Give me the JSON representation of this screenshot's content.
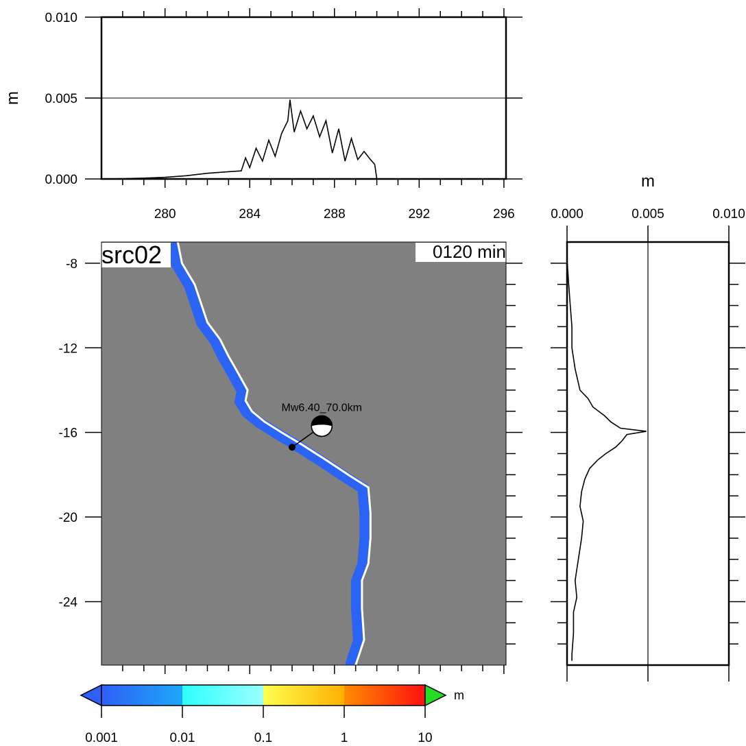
{
  "chart_data": [
    {
      "type": "line",
      "panel": "top-profile",
      "ylabel": "m",
      "ylim": [
        0,
        0.01
      ],
      "xlim": [
        277,
        296.1
      ],
      "yticks": [
        "0.000",
        "0.005",
        "0.010"
      ],
      "xticks": [
        "280",
        "284",
        "288",
        "292",
        "296"
      ],
      "grid": "horizontal line at 0.005",
      "x": [
        277,
        278,
        279,
        280,
        281,
        282,
        283,
        283.6,
        283.8,
        284.0,
        284.3,
        284.6,
        284.9,
        285.2,
        285.5,
        285.8,
        285.9,
        286.1,
        286.4,
        286.7,
        287.0,
        287.3,
        287.6,
        287.9,
        288.2,
        288.5,
        288.8,
        289.1,
        289.4,
        289.7,
        289.9,
        290.0
      ],
      "values": [
        0.0,
        2e-05,
        5e-05,
        0.0001,
        0.0002,
        0.00035,
        0.00045,
        0.0005,
        0.0013,
        0.0007,
        0.0019,
        0.0011,
        0.0024,
        0.0014,
        0.0028,
        0.0036,
        0.0049,
        0.0029,
        0.0042,
        0.0031,
        0.0039,
        0.0026,
        0.0036,
        0.0016,
        0.0031,
        0.0011,
        0.0025,
        0.0012,
        0.0017,
        0.0012,
        0.0009,
        0.0
      ]
    },
    {
      "type": "line",
      "panel": "right-profile",
      "xlabel": "m",
      "xlim": [
        0,
        0.01
      ],
      "ylim": [
        -27,
        -7
      ],
      "xticks": [
        "0.000",
        "0.005",
        "0.010"
      ],
      "grid": "vertical line at 0.005",
      "y": [
        -7.8,
        -9.0,
        -10.0,
        -11.0,
        -12.0,
        -13.0,
        -14.0,
        -14.4,
        -14.8,
        -15.2,
        -15.5,
        -15.8,
        -15.95,
        -16.1,
        -16.4,
        -16.7,
        -17.0,
        -17.3,
        -17.7,
        -18.2,
        -18.8,
        -19.5,
        -20.2,
        -21.0,
        -22.0,
        -23.0,
        -23.8,
        -24.5,
        -25.5,
        -26.5,
        -26.8
      ],
      "values": [
        0.0,
        0.0001,
        0.0002,
        0.0003,
        0.0003,
        0.0005,
        0.0008,
        0.0013,
        0.0016,
        0.0023,
        0.0027,
        0.0033,
        0.0049,
        0.0037,
        0.0034,
        0.003,
        0.0024,
        0.0019,
        0.0014,
        0.0011,
        0.0009,
        0.0008,
        0.001,
        0.0009,
        0.0007,
        0.0005,
        0.0006,
        0.0004,
        0.0004,
        0.0003,
        0.0003
      ]
    },
    {
      "type": "heatmap",
      "panel": "main-map",
      "title": "src02",
      "time_label": "0120 min",
      "xlim": [
        277,
        296.1
      ],
      "ylim": [
        -27,
        -7
      ],
      "xticks": [
        "280",
        "284",
        "288",
        "292",
        "296"
      ],
      "yticks": [
        "-8",
        "-12",
        "-16",
        "-20",
        "-24"
      ],
      "background_color": "#808080",
      "wave_color": "#2b64f5",
      "coast_color": "#ffffff",
      "coastline": [
        [
          280.6,
          -7.0
        ],
        [
          280.8,
          -8.0
        ],
        [
          281.4,
          -9.0
        ],
        [
          282.0,
          -10.8
        ],
        [
          282.6,
          -11.6
        ],
        [
          283.0,
          -12.4
        ],
        [
          283.4,
          -13.1
        ],
        [
          283.9,
          -14.0
        ],
        [
          283.8,
          -14.5
        ],
        [
          284.1,
          -15.0
        ],
        [
          284.7,
          -15.5
        ],
        [
          285.5,
          -16.0
        ],
        [
          286.5,
          -16.6
        ],
        [
          287.6,
          -17.3
        ],
        [
          288.8,
          -18.1
        ],
        [
          289.6,
          -18.6
        ],
        [
          289.7,
          -19.8
        ],
        [
          289.7,
          -21.0
        ],
        [
          289.6,
          -22.2
        ],
        [
          289.3,
          -23.0
        ],
        [
          289.3,
          -24.3
        ],
        [
          289.4,
          -25.8
        ],
        [
          289.2,
          -26.4
        ],
        [
          289.0,
          -27.0
        ]
      ],
      "event": {
        "label": "Mw6.40_70.0km",
        "lon": 286.0,
        "lat": -16.7,
        "beachball_lon": 287.4,
        "beachball_lat": -15.7
      }
    },
    {
      "type": "colorbar",
      "unit": "m",
      "ticks": [
        "0.001",
        "0.01",
        "0.1",
        "1",
        "10"
      ],
      "low_color": "#2f5ff7",
      "high_color": "#22dd22",
      "stops": [
        {
          "color": "#2f5ff7"
        },
        {
          "color": "#1ea8f8"
        },
        {
          "color": "#2fffff"
        },
        {
          "color": "#9affff"
        },
        {
          "color": "#ffff50"
        },
        {
          "color": "#ffb000"
        },
        {
          "color": "#ff8c00"
        },
        {
          "color": "#ff1010"
        }
      ]
    }
  ]
}
